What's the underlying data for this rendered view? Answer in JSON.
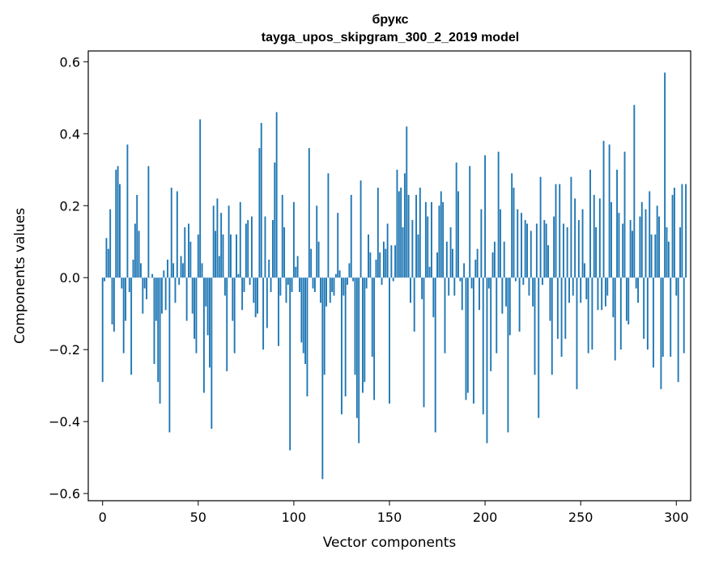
{
  "chart_data": {
    "type": "bar",
    "title": "брукс",
    "subtitle": "tayga_upos_skipgram_300_2_2019 model",
    "xlabel": "Vector components",
    "ylabel": "Components values",
    "xlim": [
      -7.5,
      307.5
    ],
    "ylim": [
      -0.62,
      0.63
    ],
    "xticks": [
      0,
      50,
      100,
      150,
      200,
      250,
      300
    ],
    "xtick_labels": [
      "0",
      "50",
      "100",
      "150",
      "200",
      "250",
      "300"
    ],
    "yticks": [
      -0.6,
      -0.4,
      -0.2,
      0.0,
      0.2,
      0.4,
      0.6
    ],
    "ytick_labels": [
      "−0.6",
      "−0.4",
      "−0.2",
      "0.0",
      "0.2",
      "0.4",
      "0.6"
    ],
    "bar_color": "#1f77b4",
    "grid": false,
    "values": [
      -0.29,
      -0.01,
      0.11,
      0.08,
      0.19,
      -0.13,
      -0.15,
      0.3,
      0.31,
      0.26,
      -0.03,
      -0.21,
      -0.12,
      0.37,
      -0.04,
      -0.27,
      0.05,
      0.15,
      0.23,
      0.13,
      0.04,
      -0.1,
      -0.03,
      -0.06,
      0.31,
      0.0,
      0.01,
      -0.24,
      -0.12,
      -0.29,
      -0.35,
      -0.1,
      0.02,
      -0.09,
      0.05,
      -0.43,
      0.25,
      0.04,
      -0.07,
      0.24,
      -0.02,
      0.06,
      0.04,
      0.14,
      -0.12,
      0.15,
      0.1,
      -0.1,
      -0.17,
      -0.21,
      0.12,
      0.44,
      0.04,
      -0.32,
      -0.08,
      -0.16,
      -0.25,
      -0.42,
      0.2,
      0.13,
      0.22,
      0.06,
      0.18,
      0.12,
      -0.05,
      -0.26,
      0.2,
      0.12,
      -0.12,
      -0.21,
      0.12,
      0.01,
      0.21,
      -0.09,
      -0.04,
      0.15,
      0.16,
      -0.02,
      0.17,
      -0.07,
      -0.11,
      -0.1,
      0.36,
      0.43,
      -0.2,
      0.17,
      -0.14,
      0.05,
      -0.04,
      0.16,
      0.32,
      0.46,
      -0.19,
      -0.05,
      0.23,
      0.14,
      -0.07,
      -0.02,
      -0.48,
      -0.04,
      0.21,
      0.03,
      0.06,
      -0.04,
      -0.18,
      -0.21,
      -0.24,
      -0.33,
      0.36,
      0.08,
      -0.03,
      -0.04,
      0.2,
      0.1,
      -0.07,
      -0.56,
      -0.27,
      -0.08,
      0.29,
      -0.07,
      -0.04,
      -0.05,
      0.01,
      0.18,
      0.02,
      -0.38,
      -0.05,
      -0.33,
      -0.02,
      0.04,
      0.23,
      -0.01,
      -0.27,
      -0.39,
      -0.46,
      0.27,
      -0.32,
      -0.29,
      -0.03,
      0.12,
      0.07,
      -0.22,
      -0.34,
      0.05,
      0.25,
      0.07,
      -0.02,
      0.1,
      0.08,
      0.15,
      -0.35,
      0.09,
      -0.01,
      0.09,
      0.3,
      0.24,
      0.25,
      0.14,
      0.29,
      0.42,
      0.23,
      -0.07,
      0.16,
      -0.15,
      0.23,
      0.12,
      0.25,
      -0.06,
      -0.36,
      0.21,
      0.17,
      0.03,
      0.21,
      -0.11,
      -0.43,
      0.07,
      0.2,
      0.24,
      0.21,
      -0.21,
      0.1,
      -0.05,
      0.14,
      0.08,
      -0.05,
      0.32,
      0.24,
      -0.01,
      -0.09,
      0.04,
      -0.34,
      -0.32,
      0.31,
      -0.03,
      -0.35,
      0.05,
      0.08,
      -0.09,
      0.19,
      -0.38,
      0.34,
      -0.46,
      -0.03,
      -0.26,
      0.07,
      0.1,
      -0.21,
      0.35,
      0.19,
      -0.1,
      0.1,
      -0.08,
      -0.43,
      -0.16,
      0.29,
      0.25,
      -0.01,
      0.19,
      -0.15,
      0.18,
      -0.02,
      0.16,
      0.15,
      -0.05,
      0.13,
      -0.08,
      -0.27,
      0.15,
      -0.39,
      0.28,
      -0.02,
      0.16,
      0.15,
      0.09,
      -0.12,
      -0.27,
      0.17,
      0.26,
      -0.17,
      0.26,
      -0.22,
      0.15,
      -0.17,
      0.14,
      -0.07,
      0.28,
      -0.05,
      0.22,
      -0.31,
      0.16,
      -0.07,
      0.19,
      0.04,
      -0.06,
      -0.21,
      0.3,
      -0.2,
      0.23,
      0.14,
      -0.09,
      0.22,
      -0.09,
      0.38,
      -0.08,
      -0.05,
      0.37,
      0.21,
      -0.11,
      -0.23,
      0.3,
      0.18,
      -0.2,
      0.15,
      0.35,
      -0.12,
      -0.13,
      0.16,
      0.13,
      0.48,
      -0.03,
      -0.07,
      0.17,
      0.21,
      -0.17,
      0.19,
      -0.2,
      0.24,
      0.12,
      -0.25,
      0.12,
      0.2,
      0.17,
      -0.31,
      -0.22,
      0.57,
      0.14,
      0.1,
      -0.22,
      0.23,
      0.25,
      -0.05,
      -0.29,
      0.14,
      0.26,
      -0.21,
      0.26
    ]
  }
}
